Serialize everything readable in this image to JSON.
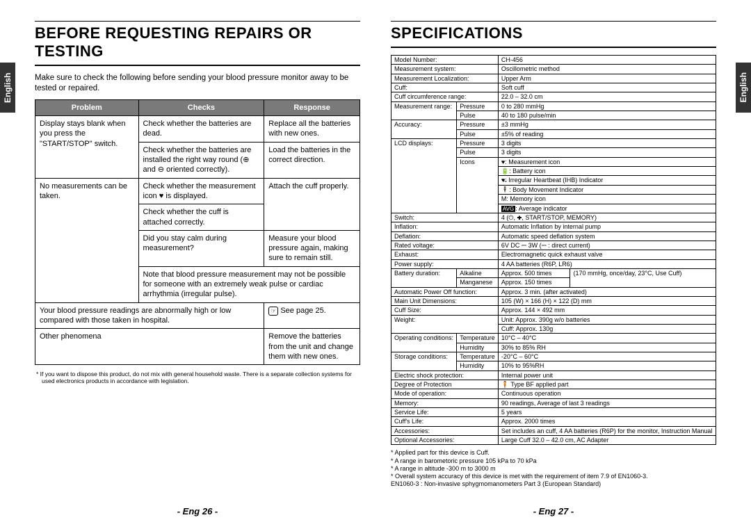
{
  "side_label": "English",
  "left": {
    "title": "BEFORE REQUESTING REPAIRS OR TESTING",
    "intro": "Make sure to check the following before sending your blood pressure monitor away to be tested or repaired.",
    "headers": [
      "Problem",
      "Checks",
      "Response"
    ],
    "rows": {
      "r1p": "Display stays blank when you press the \"START/STOP\" switch.",
      "r1c": "Check whether the batteries are dead.",
      "r1r": "Replace all the batteries with new ones.",
      "r2c": "Check whether the batteries are installed the right way round (⊕ and ⊖ oriented correctly).",
      "r2r": "Load the batteries in the correct direction.",
      "r3p": "No measurements can be taken.",
      "r3c": "Check whether the measurement icon ♥ is displayed.",
      "r3r": "Attach the cuff properly.",
      "r4c": "Check whether the cuff is attached correctly.",
      "r5c": "Did you stay calm during measurement?",
      "r5r": "Measure your blood pressure again, making sure to remain still.",
      "r6": "Note that blood pressure measurement may not be possible for someone with an extremely weak pulse or cardiac arrhythmia (irregular pulse).",
      "r7p": "Your blood pressure readings are abnormally high or low compared with those taken in hospital.",
      "r7r": "See page 25.",
      "r8p": "Other phenomena",
      "r8r": "Remove the batteries from the unit and change them with new ones."
    },
    "footnote": "* If you want to dispose this product, do not mix with general household waste. There is a separate collection systems for used electronics products in accordance with legislation.",
    "pagenum": "- Eng 26 -"
  },
  "right": {
    "title": "SPECIFICATIONS",
    "spec": {
      "model_l": "Model Number:",
      "model_v": "CH-456",
      "msys_l": "Measurement system:",
      "msys_v": "Oscillometric method",
      "mloc_l": "Measurement Localization:",
      "mloc_v": "Upper Arm",
      "cuff_l": "Cuff:",
      "cuff_v": "Soft cuff",
      "cuffc_l": "Cuff circumference range:",
      "cuffc_v": "22.0 – 32.0 cm",
      "mrange_l": "Measurement range:",
      "mrange_p_l": "Pressure",
      "mrange_p_v": "0 to 280 mmHg",
      "mrange_u_l": "Pulse",
      "mrange_u_v": "40 to 180 pulse/min",
      "acc_l": "Accuracy:",
      "acc_p_l": "Pressure",
      "acc_p_v": "±3 mmHg",
      "acc_u_l": "Pulse",
      "acc_u_v": "±5% of reading",
      "lcd_l": "LCD displays:",
      "lcd_p_l": "Pressure",
      "lcd_p_v": "3 digits",
      "lcd_u_l": "Pulse",
      "lcd_u_v": "3 digits",
      "ic_l": "Icons",
      "ic_1": "♥: Measurement icon",
      "ic_2": "🔋: Battery icon",
      "ic_3": "♥̶: Irregular Heartbeat (IHB) Indicator",
      "ic_4": "🕴: Body Movement Indicator",
      "ic_5": "M: Memory icon",
      "ic_6": "AVG: Average indicator",
      "switch_l": "Switch:",
      "switch_v": "4 (⏻, ✚, START/STOP, MEMORY)",
      "infl_l": "Inflation:",
      "infl_v": "Automatic Inflation by internal pump",
      "defl_l": "Deflation:",
      "defl_v": "Automatic speed deflation system",
      "rv_l": "Rated voltage:",
      "rv_v": "6V DC ⎓ 3W (⎓ : direct current)",
      "exh_l": "Exhaust:",
      "exh_v": "Electromagnetic quick exhaust valve",
      "pow_l": "Power supply:",
      "pow_v": "4 AA  batteries (R6P, LR6)",
      "bd_l": "Battery duration:",
      "bd_a_l": "Alkaline",
      "bd_a_v": "Approx. 500 times",
      "bd_m_l": "Manganese",
      "bd_m_v": "Approx. 150 times",
      "bd_cond": "(170 mmHg, once/day, 23°C, Use Cuff)",
      "apo_l": "Automatic Power Off function:",
      "apo_v": "Approx. 3 min. (after activated)",
      "dim_l": "Main Unit Dimensions:",
      "dim_v": "105 (W) × 166 (H) × 122 (D) mm",
      "cs_l": "Cuff Size:",
      "cs_v": "Approx. 144 × 492 mm",
      "wt_l": "Weight:",
      "wt_v1": "Unit: Approx. 390g w/o batteries",
      "wt_v2": "Cuff: Approx. 130g",
      "op_l": "Operating conditions:",
      "op_t_l": "Temperature",
      "op_t_v": "10°C – 40°C",
      "op_h_l": "Humidity",
      "op_h_v": "30% to 85% RH",
      "st_l": "Storage conditions:",
      "st_t_l": "Temperature",
      "st_t_v": "-20°C – 60°C",
      "st_h_l": "Humidity",
      "st_h_v": "10% to 95%RH",
      "esp_l": "Electric shock protection:",
      "esp_v": "Internal power unit",
      "dop_l": "Degree of Protection",
      "dop_v": "🧍 Type BF applied part",
      "mop_l": "Mode of operation:",
      "mop_v": "Continuous operation",
      "mem_l": "Memory:",
      "mem_v": "90 readings, Average of last 3 readings",
      "sl_l": "Service Life:",
      "sl_v": "5 years",
      "cl_l": "Cuff's Life:",
      "cl_v": "Approx. 2000 times",
      "accs_l": "Accessories:",
      "accs_v": "Set includes an cuff, 4 AA batteries (R6P) for the monitor, Instruction Manual",
      "oacc_l": "Optional Accessories:",
      "oacc_v": "Large Cuff 32.0 – 42.0 cm, AC Adapter"
    },
    "notes": [
      "* Applied part for this device is Cuff.",
      "* A range in barometoric pressure 105 kPa to 70 kPa",
      "* A range in altitude -300 m to 3000 m",
      "* Overall system accuracy of this device is met with the requirement of item 7.9 of EN1060-3.",
      "  EN1060-3 : Non-invasive sphygmomanometers Part 3 (European Standard)"
    ],
    "pagenum": "- Eng 27 -"
  }
}
